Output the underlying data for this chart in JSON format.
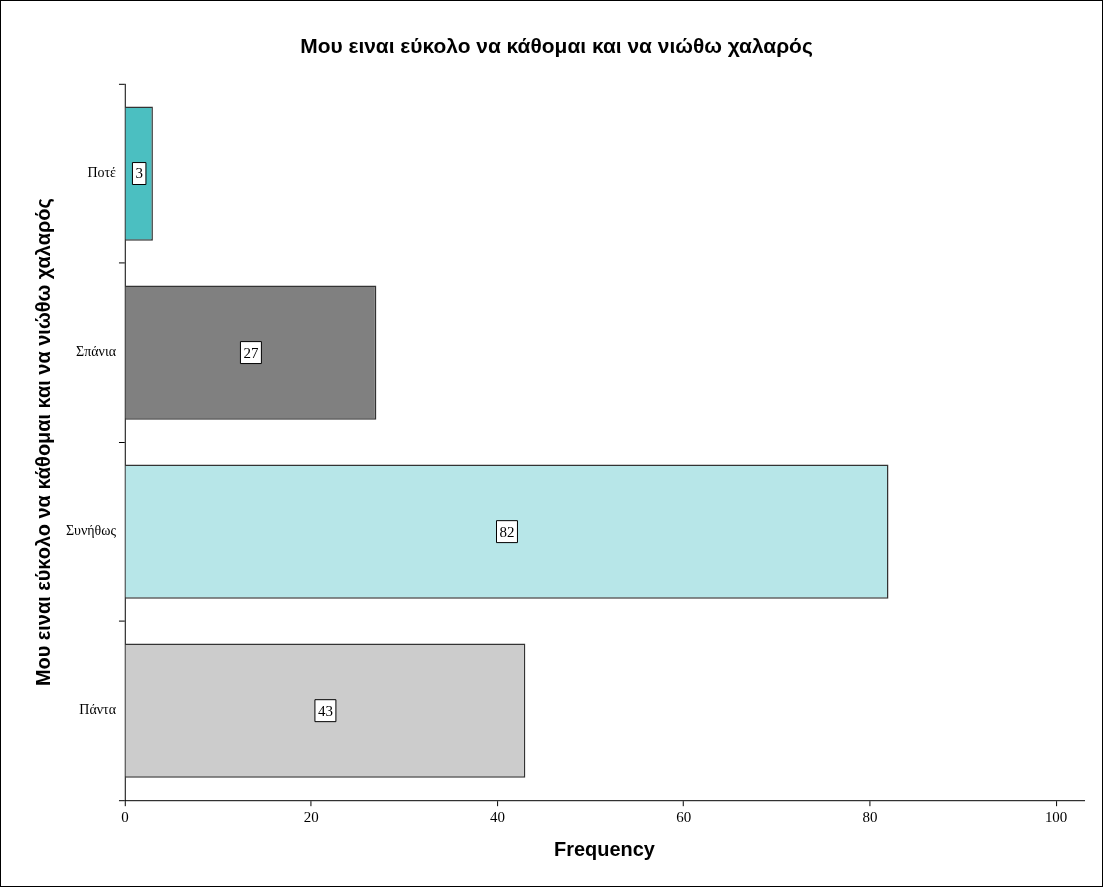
{
  "chart_data": {
    "type": "bar",
    "orientation": "horizontal",
    "title": "Μου ειναι εύκολο να κάθομαι και να νιώθω χαλαρός",
    "xlabel": "Frequency",
    "ylabel": "Μου ειναι εύκολο να κάθομαι και να νιώθω χαλαρός",
    "categories": [
      "Ποτέ",
      "Σπάνια",
      "Συνήθως",
      "Πάντα"
    ],
    "values": [
      3,
      27,
      82,
      43
    ],
    "colors": [
      "#4bbfc1",
      "#808080",
      "#b7e6e8",
      "#cccccc"
    ],
    "xlim": [
      0,
      103
    ],
    "xticks": [
      0,
      20,
      40,
      60,
      80,
      100
    ],
    "data_labels": true,
    "grid": false,
    "legend": false
  }
}
